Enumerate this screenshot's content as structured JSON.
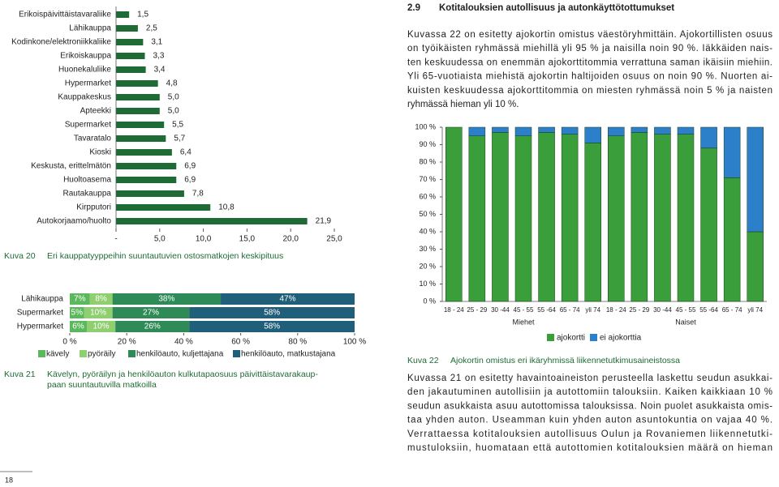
{
  "chart_data": [
    {
      "type": "hbar",
      "categories": [
        "Erikoispäivittäistavaraliike",
        "Lähikauppa",
        "Kodinkone/elektroniikkaliike",
        "Erikoiskauppa",
        "Huonekaluliike",
        "Hypermarket",
        "Kauppakeskus",
        "Apteekki",
        "Supermarket",
        "Tavaratalo",
        "Kioski",
        "Keskusta, erittelmätön",
        "Huoltoasema",
        "Rautakauppa",
        "Kirpputori",
        "Autokorjaamo/huolto"
      ],
      "values": [
        1.5,
        2.5,
        3.1,
        3.3,
        3.4,
        4.8,
        5.0,
        5.0,
        5.5,
        5.7,
        6.4,
        6.9,
        6.9,
        7.8,
        10.8,
        21.9
      ],
      "value_labels": [
        "1,5",
        "2,5",
        "3,1",
        "3,3",
        "3,4",
        "4,8",
        "5,0",
        "5,0",
        "5,5",
        "5,7",
        "6,4",
        "6,9",
        "6,9",
        "7,8",
        "10,8",
        "21,9"
      ],
      "color": "#1e6b35",
      "xlim": [
        0,
        25
      ],
      "xticks": [
        {
          "value": 0,
          "label": "-"
        },
        {
          "value": 5,
          "label": "5,0"
        },
        {
          "value": 10,
          "label": "10,0"
        },
        {
          "value": 15,
          "label": "15,0"
        },
        {
          "value": 20,
          "label": "20,0"
        },
        {
          "value": 25,
          "label": "25,0"
        }
      ]
    },
    {
      "type": "stacked-hbar",
      "categories": [
        "Lähikauppa",
        "Supermarket",
        "Hypermarket"
      ],
      "series": [
        {
          "name": "kävely",
          "color": "#5cb85c",
          "values": [
            7,
            5,
            6
          ],
          "value_labels": [
            "7%",
            "5%",
            "6%"
          ]
        },
        {
          "name": "pyöräily",
          "color": "#8fcf6f",
          "values": [
            8,
            10,
            10
          ],
          "value_labels": [
            "8%",
            "10%",
            "10%"
          ]
        },
        {
          "name": "henkilöauto, kuljettajana",
          "color": "#2e8b57",
          "values": [
            38,
            27,
            26
          ],
          "value_labels": [
            "38%",
            "27%",
            "26%"
          ]
        },
        {
          "name": "henkilöauto, matkustajana",
          "color": "#1f5f7a",
          "values": [
            47,
            58,
            58
          ],
          "value_labels": [
            "47%",
            "58%",
            "58%"
          ]
        }
      ],
      "xlim": [
        0,
        100
      ],
      "xticks": [
        {
          "value": 0,
          "label": "0 %"
        },
        {
          "value": 20,
          "label": "20 %"
        },
        {
          "value": 40,
          "label": "40 %"
        },
        {
          "value": 60,
          "label": "60 %"
        },
        {
          "value": 80,
          "label": "80 %"
        },
        {
          "value": 100,
          "label": "100 %"
        }
      ]
    },
    {
      "type": "stacked-bar",
      "categories": [
        "18 - 24",
        "25 - 29",
        "30 -44",
        "45 - 55",
        "55 -64",
        "65 - 74",
        "yli 74",
        "18 - 24",
        "25 - 29",
        "30 -44",
        "45 - 55",
        "55 -64",
        "65 - 74",
        "yli 74"
      ],
      "groups": [
        "Miehet",
        "Naiset"
      ],
      "series": [
        {
          "name": "ajokortti",
          "color": "#3a9e3a",
          "values": [
            100,
            95,
            97,
            95,
            97,
            96,
            91,
            95,
            97,
            96,
            96,
            88,
            71,
            40
          ]
        },
        {
          "name": "ei ajokorttia",
          "color": "#2c7fc9",
          "values": [
            0,
            5,
            3,
            5,
            3,
            4,
            9,
            5,
            3,
            4,
            4,
            12,
            29,
            60
          ]
        }
      ],
      "ylim": [
        0,
        100
      ],
      "yticks": [
        {
          "value": 0,
          "label": "0 %"
        },
        {
          "value": 10,
          "label": "10 %"
        },
        {
          "value": 20,
          "label": "20 %"
        },
        {
          "value": 30,
          "label": "30 %"
        },
        {
          "value": 40,
          "label": "40 %"
        },
        {
          "value": 50,
          "label": "50 %"
        },
        {
          "value": 60,
          "label": "60 %"
        },
        {
          "value": 70,
          "label": "70 %"
        },
        {
          "value": 80,
          "label": "80 %"
        },
        {
          "value": 90,
          "label": "90 %"
        },
        {
          "value": 100,
          "label": "100 %"
        }
      ]
    }
  ],
  "document": {
    "heading_number": "2.9",
    "heading": "Kotitalouksien autollisuus ja autonkäyttötottumukset",
    "paragraphs": [
      [
        "Kuvassa 22 on esitetty ajokortin omistus väestöryhmittäin. Ajokortillisten osuus",
        "on työikäisten ryhmässä miehillä yli 95 % ja naisilla noin 90 %. Iäkkäiden nais-",
        "ten keskuudessa on enemmän ajokorttitommia verrattuna saman ikäisiin miehiin.",
        "Yli 65-vuotiaista miehistä ajokortin haltijoiden osuus on noin 90 %. Nuorten ai-",
        "kuisten keskuudessa ajokorttitommia on miesten ryhmässä noin 5 % ja naisten",
        "ryhmässä hieman yli 10 %."
      ],
      [
        "Kuvassa 21 on esitetty havaintoaineiston perusteella laskettu seudun asukkai-",
        "den jakautuminen autollisiin ja autottomiin talouksiin. Kaiken kaikkiaan 10 %",
        "seudun asukkaista asuu autottomissa talouksissa. Noin puolet asukkaista omis-",
        "taa yhden auton. Useamman kuin yhden auton asuntokuntia on vajaa 40 %.",
        "Verrattaessa kotitalouksien autollisuus Oulun ja Rovaniemen liikennetutki-",
        "mustuloksiin, huomataan että autottomien kotitalouksien määrä on hieman"
      ]
    ],
    "captions": [
      {
        "label": "Kuva 20",
        "lines": [
          "Eri kauppatyyppeihin suuntautuvien ostosmatkojen keskipituus"
        ]
      },
      {
        "label": "Kuva 21",
        "lines": [
          "Kävelyn, pyöräilyn ja henkilöauton kulkutapaosuus päivittäistavarakaup-",
          "paan suuntautuvilla matkoilla"
        ]
      },
      {
        "label": "Kuva 22",
        "lines": [
          "Ajokortin omistus eri ikäryhmissä liikennetutkimusaineistossa"
        ]
      }
    ],
    "page_number": "18"
  }
}
